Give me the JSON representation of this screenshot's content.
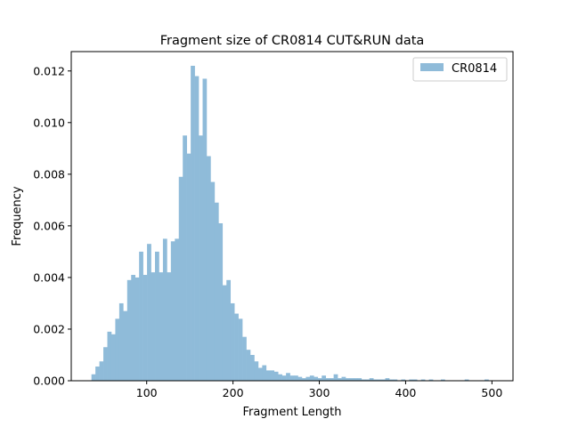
{
  "chart_data": {
    "type": "bar",
    "title": "Fragment size of CR0814 CUT&RUN data",
    "xlabel": "Fragment Length",
    "ylabel": "Frequency",
    "xlim": [
      12.6,
      524.4
    ],
    "ylim": [
      0,
      0.01275
    ],
    "xticks": [
      100,
      200,
      300,
      400,
      500
    ],
    "xtick_labels": [
      "100",
      "200",
      "300",
      "400",
      "500"
    ],
    "yticks": [
      0,
      0.002,
      0.004,
      0.006,
      0.008,
      0.01,
      0.012
    ],
    "ytick_labels": [
      "0.000",
      "0.002",
      "0.004",
      "0.006",
      "0.008",
      "0.010",
      "0.012"
    ],
    "legend": {
      "position": "top-right",
      "labels": [
        "CR0814"
      ]
    },
    "grid": false,
    "bar_color": "#8fbbd9",
    "bin_start": 36,
    "bin_width": 4.6,
    "series": [
      {
        "name": "CR0814",
        "values": [
          0.00025,
          0.00055,
          0.00075,
          0.0013,
          0.0019,
          0.0018,
          0.0024,
          0.003,
          0.0027,
          0.0039,
          0.0041,
          0.004,
          0.005,
          0.0041,
          0.0053,
          0.0042,
          0.005,
          0.0042,
          0.0055,
          0.0042,
          0.0054,
          0.0055,
          0.0079,
          0.0095,
          0.0088,
          0.0122,
          0.0118,
          0.0095,
          0.0117,
          0.0087,
          0.0077,
          0.0069,
          0.0061,
          0.0037,
          0.0039,
          0.003,
          0.0026,
          0.0024,
          0.0017,
          0.0012,
          0.001,
          0.00075,
          0.0005,
          0.0006,
          0.0004,
          0.0004,
          0.00035,
          0.00025,
          0.0002,
          0.0003,
          0.0002,
          0.0002,
          0.00015,
          0.0001,
          0.00015,
          0.0002,
          0.00015,
          0.0001,
          0.0002,
          0.0001,
          0.0001,
          0.00025,
          0.0001,
          0.00015,
          0.0001,
          0.0001,
          0.0001,
          0.0001,
          5e-05,
          5e-05,
          0.0001,
          5e-05,
          5e-05,
          5e-05,
          0.0001,
          5e-05,
          5e-05,
          0.0,
          5e-05,
          0.0,
          5e-05,
          5e-05,
          0.0,
          5e-05,
          0.0,
          5e-05,
          0.0,
          0.0,
          5e-05,
          0.0,
          0.0,
          0.0,
          0.0,
          0.0,
          5e-05,
          0.0,
          0.0,
          0.0,
          0.0,
          5e-05
        ]
      }
    ]
  }
}
